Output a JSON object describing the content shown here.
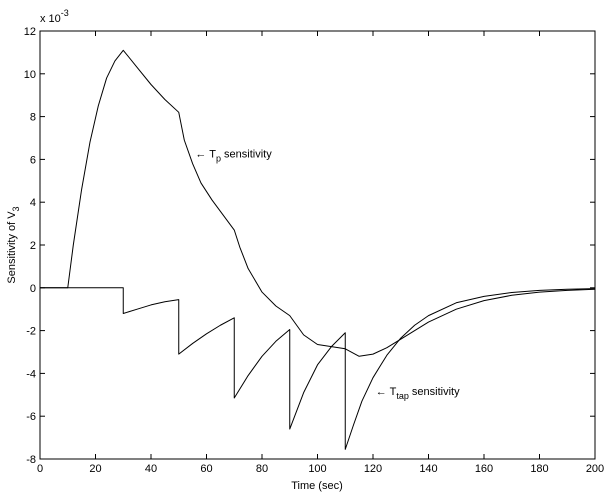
{
  "chart_data": {
    "type": "line",
    "title": "",
    "xlabel": "Time (sec)",
    "ylabel_main": "Sensitivity of V",
    "ylabel_sub": "3",
    "y_exponent_base": "x 10",
    "y_exponent_power": "-3",
    "xlim": [
      0,
      200
    ],
    "ylim": [
      -8,
      12
    ],
    "x_ticks": [
      0,
      20,
      40,
      60,
      80,
      100,
      120,
      140,
      160,
      180,
      200
    ],
    "y_ticks": [
      -8,
      -6,
      -4,
      -2,
      0,
      2,
      4,
      6,
      8,
      10,
      12
    ],
    "grid": false,
    "legend": "none",
    "series": [
      {
        "label_main": "T",
        "label_sub": "p",
        "label_rest": " sensitivity",
        "label_prefix": "←",
        "label_at": [
          56,
          6.1
        ],
        "x": [
          0,
          10,
          12,
          15,
          18,
          21,
          24,
          27,
          30,
          35,
          40,
          45,
          50,
          52,
          55,
          58,
          62,
          66,
          70,
          72,
          75,
          80,
          85,
          90,
          95,
          100,
          105,
          110,
          115,
          120,
          125,
          130,
          140,
          150,
          160,
          170,
          180,
          190,
          200
        ],
        "y": [
          0,
          0,
          2.0,
          4.6,
          6.8,
          8.5,
          9.8,
          10.6,
          11.1,
          10.3,
          9.5,
          8.8,
          8.2,
          6.9,
          5.8,
          4.9,
          4.1,
          3.4,
          2.7,
          1.9,
          0.9,
          -0.2,
          -0.85,
          -1.3,
          -2.2,
          -2.65,
          -2.75,
          -2.85,
          -3.2,
          -3.1,
          -2.8,
          -2.4,
          -1.6,
          -1.0,
          -0.6,
          -0.35,
          -0.2,
          -0.12,
          -0.07
        ]
      },
      {
        "label_main": "T",
        "label_sub": "tap",
        "label_rest": " sensitivity",
        "label_prefix": "←",
        "label_at": [
          121,
          -5.0
        ],
        "x": [
          0,
          30,
          30,
          35,
          40,
          45,
          50,
          50,
          55,
          60,
          65,
          70,
          70,
          75,
          80,
          85,
          90,
          90,
          95,
          100,
          105,
          110,
          110,
          113,
          116,
          120,
          125,
          130,
          135,
          140,
          150,
          160,
          170,
          180,
          190,
          200
        ],
        "y": [
          0,
          0,
          -1.2,
          -1.0,
          -0.8,
          -0.65,
          -0.55,
          -3.1,
          -2.6,
          -2.15,
          -1.75,
          -1.4,
          -5.15,
          -4.1,
          -3.2,
          -2.5,
          -1.95,
          -6.6,
          -4.9,
          -3.6,
          -2.75,
          -2.1,
          -7.55,
          -6.4,
          -5.3,
          -4.2,
          -3.15,
          -2.35,
          -1.75,
          -1.3,
          -0.7,
          -0.4,
          -0.22,
          -0.12,
          -0.07,
          -0.04
        ]
      }
    ]
  }
}
